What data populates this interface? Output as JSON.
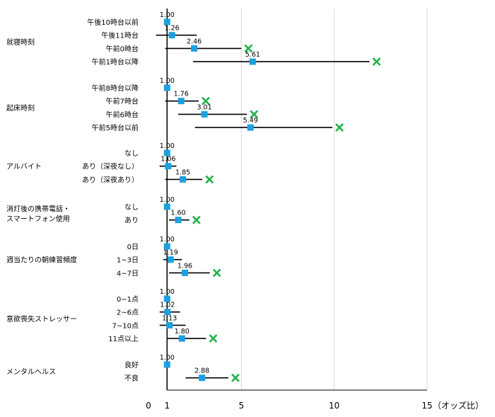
{
  "chart_data": {
    "type": "forest",
    "x_axis": {
      "ticks": [
        {
          "value": 0,
          "label": "0"
        },
        {
          "value": 1,
          "label": "1"
        },
        {
          "value": 5,
          "label": "5"
        },
        {
          "value": 10,
          "label": "10"
        },
        {
          "value": 15,
          "label": "15"
        }
      ],
      "unit_label": "（オッズ比）",
      "range": [
        0,
        15
      ],
      "reference_line": 1,
      "grid": true
    },
    "groups": [
      {
        "name": "就寝時刻",
        "rows": [
          {
            "label": "午後10時台以前",
            "or": 1.0,
            "or_label": "1.00",
            "ci": null,
            "significant": false
          },
          {
            "label": "午後11時台",
            "or": 1.26,
            "or_label": "1.26",
            "ci": [
              0.4,
              2.6
            ],
            "significant": false
          },
          {
            "label": "午前0時台",
            "or": 2.46,
            "or_label": "2.46",
            "ci": [
              0.9,
              5.0
            ],
            "significant": true
          },
          {
            "label": "午前1時台以降",
            "or": 5.61,
            "or_label": "5.61",
            "ci": [
              2.4,
              11.9
            ],
            "significant": true
          }
        ]
      },
      {
        "name": "起床時刻",
        "rows": [
          {
            "label": "午前8時台以降",
            "or": 1.0,
            "or_label": "1.00",
            "ci": null,
            "significant": false
          },
          {
            "label": "午前7時台",
            "or": 1.76,
            "or_label": "1.76",
            "ci": [
              0.9,
              2.7
            ],
            "significant": true
          },
          {
            "label": "午前6時台",
            "or": 3.01,
            "or_label": "3.01",
            "ci": [
              1.6,
              5.3
            ],
            "significant": true
          },
          {
            "label": "午前5時台以前",
            "or": 5.49,
            "or_label": "5.49",
            "ci": [
              2.5,
              9.9
            ],
            "significant": true
          }
        ]
      },
      {
        "name": "アルバイト",
        "rows": [
          {
            "label": "なし",
            "or": 1.0,
            "or_label": "1.00",
            "ci": null,
            "significant": false
          },
          {
            "label": "あり（深夜なし）",
            "or": 1.06,
            "or_label": "1.06",
            "ci": [
              0.6,
              1.5
            ],
            "significant": false
          },
          {
            "label": "あり（深夜あり）",
            "or": 1.85,
            "or_label": "1.85",
            "ci": [
              0.9,
              2.9
            ],
            "significant": true
          }
        ]
      },
      {
        "name": "消灯後の携帯電話・\nスマートフォン使用",
        "rows": [
          {
            "label": "なし",
            "or": 1.0,
            "or_label": "1.00",
            "ci": null,
            "significant": false
          },
          {
            "label": "あり",
            "or": 1.6,
            "or_label": "1.60",
            "ci": [
              1.1,
              2.2
            ],
            "significant": true
          }
        ]
      },
      {
        "name": "週当たりの朝練習頻度",
        "rows": [
          {
            "label": "0日",
            "or": 1.0,
            "or_label": "1.00",
            "ci": null,
            "significant": false
          },
          {
            "label": "1~3日",
            "or": 1.19,
            "or_label": "1.19",
            "ci": [
              0.8,
              1.8
            ],
            "significant": false
          },
          {
            "label": "4~7日",
            "or": 1.96,
            "or_label": "1.96",
            "ci": [
              1.1,
              3.3
            ],
            "significant": true
          }
        ]
      },
      {
        "name": "意欲喪失ストレッサー",
        "rows": [
          {
            "label": "0~1点",
            "or": 1.0,
            "or_label": "1.00",
            "ci": null,
            "significant": false
          },
          {
            "label": "2~6点",
            "or": 1.02,
            "or_label": "1.02",
            "ci": [
              0.6,
              1.7
            ],
            "significant": false
          },
          {
            "label": "7~10点",
            "or": 1.13,
            "or_label": "1.13",
            "ci": [
              0.6,
              2.0
            ],
            "significant": false
          },
          {
            "label": "11点以上",
            "or": 1.8,
            "or_label": "1.80",
            "ci": [
              1.0,
              3.1
            ],
            "significant": true
          }
        ]
      },
      {
        "name": "メンタルヘルス",
        "rows": [
          {
            "label": "良好",
            "or": 1.0,
            "or_label": "1.00",
            "ci": null,
            "significant": false
          },
          {
            "label": "不良",
            "or": 2.88,
            "or_label": "2.88",
            "ci": [
              2.0,
              4.3
            ],
            "significant": true
          }
        ]
      }
    ],
    "colors": {
      "marker": "#1ba1e2",
      "sig_marker": "#22b14c",
      "line": "#000000",
      "grid": "#d9d9d9"
    }
  }
}
